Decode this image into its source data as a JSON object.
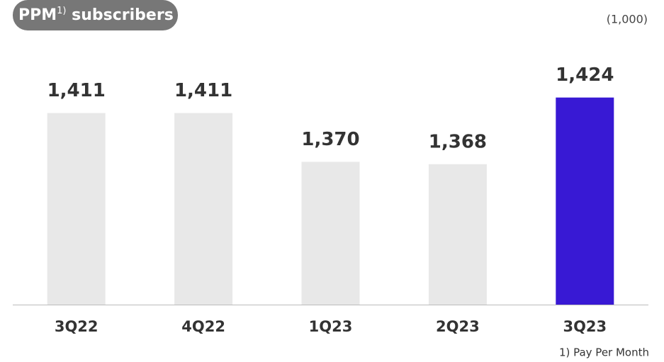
{
  "chart_data": {
    "type": "bar",
    "title": "PPM",
    "title_superscript": "1)",
    "title_rest": " subscribers",
    "unit_label": "(1,000)",
    "footnote": "1) Pay Per Month",
    "categories": [
      "3Q22",
      "4Q22",
      "1Q23",
      "2Q23",
      "3Q23"
    ],
    "values": [
      1411,
      1411,
      1370,
      1368,
      1424
    ],
    "value_labels": [
      "1,411",
      "1,411",
      "1,370",
      "1,368",
      "1,424"
    ],
    "colors": [
      "#e8e8e8",
      "#e8e8e8",
      "#e8e8e8",
      "#e8e8e8",
      "#3819d4"
    ],
    "ylim": [
      1250,
      1500
    ]
  }
}
